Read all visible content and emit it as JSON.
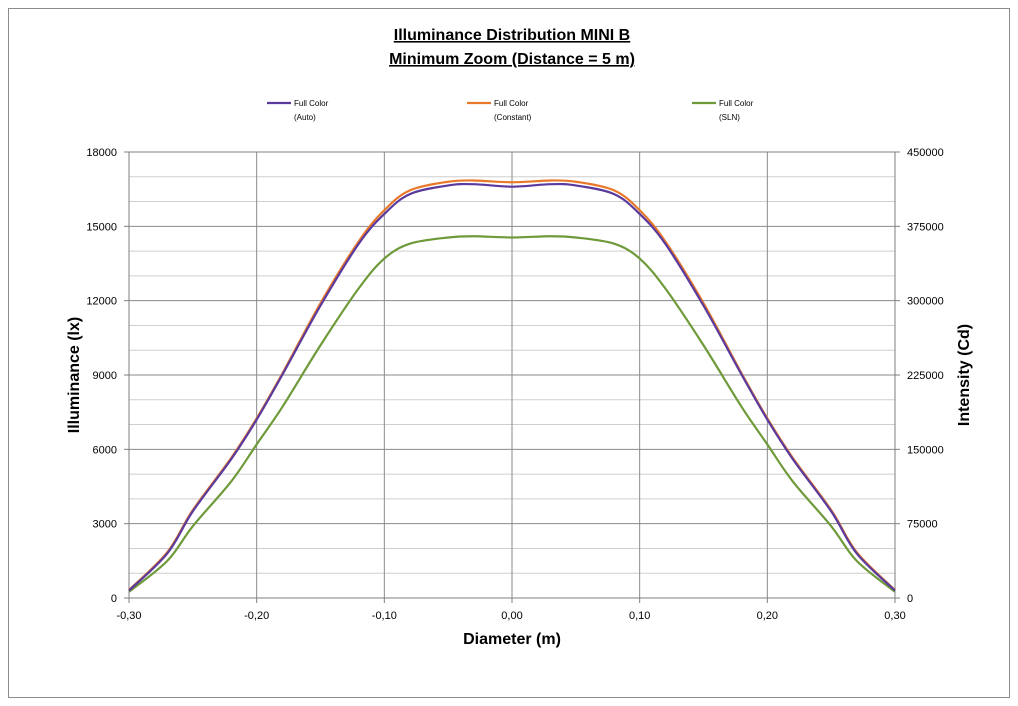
{
  "chart_data": {
    "type": "line",
    "title": "Illuminance Distribution MINI B",
    "subtitle": "Minimum Zoom (Distance = 5 m)",
    "xlabel": "Diameter (m)",
    "ylabel": "Illuminance  (lx)",
    "y2label": "Intensity  (Cd)",
    "xlim": [
      -0.3,
      0.3
    ],
    "ylim": [
      0,
      18000
    ],
    "y2lim": [
      0,
      450000
    ],
    "x_ticks": [
      "-0,30",
      "-0,20",
      "-0,10",
      "0,00",
      "0,10",
      "0,20",
      "0,30"
    ],
    "y_ticks": [
      "0",
      "3000",
      "6000",
      "9000",
      "12000",
      "15000",
      "18000"
    ],
    "y2_ticks": [
      "0",
      "75000",
      "150000",
      "225000",
      "300000",
      "375000",
      "450000"
    ],
    "grid": true,
    "legend_position": "top",
    "legend": [
      {
        "line1": "Full Color",
        "line2": "(Auto)"
      },
      {
        "line1": "Full Color",
        "line2": "(Constant)"
      },
      {
        "line1": "Full Color",
        "line2": "(SLN)"
      }
    ],
    "x": [
      -0.3,
      -0.27,
      -0.25,
      -0.22,
      -0.2,
      -0.18,
      -0.15,
      -0.12,
      -0.1,
      -0.08,
      -0.05,
      -0.03,
      0.0,
      0.03,
      0.05,
      0.08,
      0.1,
      0.12,
      0.15,
      0.18,
      0.2,
      0.22,
      0.25,
      0.27,
      0.3
    ],
    "series": [
      {
        "name": "Full Color (Auto)",
        "color": "#5b3a9e",
        "values": [
          300,
          1800,
          3500,
          5600,
          7200,
          9000,
          11800,
          14300,
          15500,
          16300,
          16650,
          16700,
          16600,
          16700,
          16650,
          16300,
          15500,
          14300,
          11800,
          9000,
          7200,
          5600,
          3500,
          1800,
          300
        ]
      },
      {
        "name": "Full Color (Constant)",
        "color": "#e8792b",
        "values": [
          320,
          1850,
          3550,
          5650,
          7250,
          9050,
          11900,
          14400,
          15650,
          16450,
          16800,
          16850,
          16780,
          16850,
          16800,
          16450,
          15650,
          14400,
          11900,
          9050,
          7250,
          5650,
          3550,
          1850,
          320
        ]
      },
      {
        "name": "Full Color (SLN)",
        "color": "#6e9a3a",
        "values": [
          250,
          1500,
          2900,
          4700,
          6200,
          7700,
          10200,
          12500,
          13700,
          14300,
          14550,
          14600,
          14550,
          14600,
          14550,
          14300,
          13700,
          12500,
          10200,
          7700,
          6200,
          4700,
          2900,
          1500,
          250
        ]
      }
    ]
  }
}
